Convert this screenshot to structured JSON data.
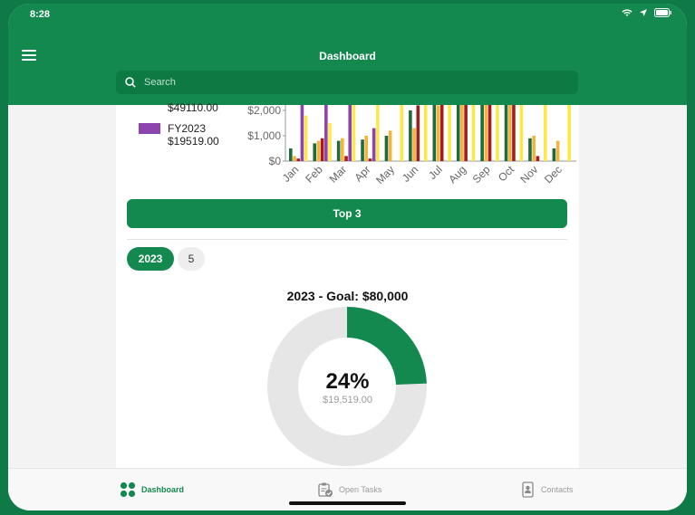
{
  "status_bar": {
    "time": "8:28"
  },
  "header": {
    "title": "Dashboard"
  },
  "search": {
    "placeholder": "Search"
  },
  "chart_data": {
    "type": "bar",
    "categories": [
      "Jan",
      "Feb",
      "Mar",
      "Apr",
      "May",
      "Jun",
      "Jul",
      "Aug",
      "Sep",
      "Oct",
      "Nov",
      "Dec"
    ],
    "ylabel": "",
    "ytick_labels": [
      "$0",
      "$1,000",
      "$2,000"
    ],
    "ylim_visible": [
      0,
      2100
    ],
    "series": [
      {
        "color": "#1f6b3a",
        "values": [
          500,
          700,
          800,
          850,
          1000,
          2000,
          3000,
          3000,
          3000,
          3000,
          900,
          500
        ]
      },
      {
        "color": "#f4b43c",
        "values": [
          200,
          800,
          900,
          1000,
          1200,
          1300,
          2200,
          2600,
          2500,
          2400,
          1000,
          800
        ]
      },
      {
        "color": "#a61b1b",
        "values": [
          100,
          900,
          200,
          100,
          0,
          2200,
          3000,
          3000,
          3000,
          3000,
          200,
          0
        ]
      },
      {
        "color": "#8e44ad",
        "values": [
          2600,
          2600,
          2600,
          1300,
          0,
          0,
          0,
          0,
          0,
          0,
          0,
          0
        ]
      },
      {
        "color": "#fde84a",
        "values": [
          1800,
          1500,
          2500,
          2500,
          2500,
          2500,
          2500,
          2500,
          2500,
          2500,
          2500,
          2500
        ]
      }
    ],
    "legend": [
      {
        "label": "$49110.00"
      },
      {
        "label": "FY2023",
        "sublabel": "$19519.00",
        "color": "#8e44ad"
      }
    ]
  },
  "top3_button": {
    "label": "Top 3"
  },
  "filters": {
    "year": "2023",
    "count": "5"
  },
  "goal": {
    "title": "2023 - Goal: $80,000",
    "percent_label": "24%",
    "amount_label": "$19,519.00",
    "fraction": 0.244
  },
  "tabs": [
    {
      "label": "Dashboard",
      "active": true
    },
    {
      "label": "Open Tasks",
      "active": false
    },
    {
      "label": "Contacts",
      "active": false
    }
  ],
  "colors": {
    "primary": "#14894f",
    "donut_track": "#e6e6e6"
  }
}
